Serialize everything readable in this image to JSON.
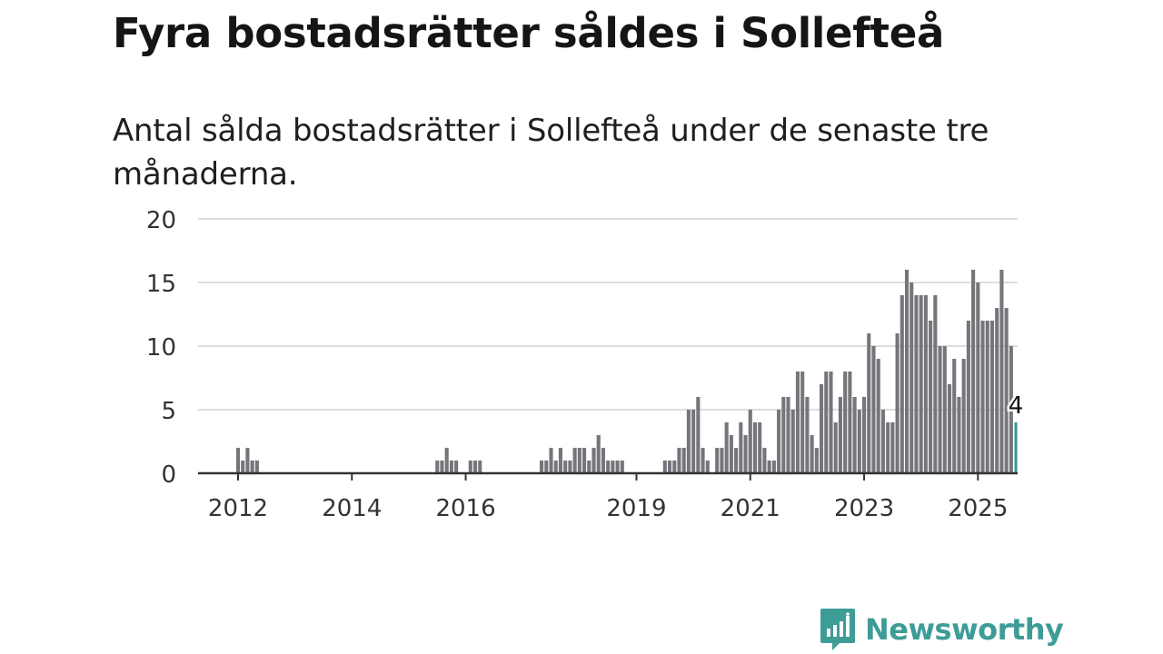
{
  "title": "Fyra bostadsrätter såldes i Sollefteå",
  "subtitle": "Antal sålda bostadsrätter i Sollefteå under de senaste tre månaderna.",
  "brand": {
    "name": "Newsworthy",
    "icon": "newsworthy-logo-icon",
    "color": "#3e9c96"
  },
  "colors": {
    "bars": "#75757b",
    "highlight": "#2a9d96",
    "grid": "#dddddd",
    "axis": "#333333"
  },
  "chart_data": {
    "type": "bar",
    "title": "Fyra bostadsrätter såldes i Sollefteå",
    "subtitle": "Antal sålda bostadsrätter i Sollefteå under de senaste tre månaderna.",
    "xlabel": "",
    "ylabel": "",
    "ylim": [
      0,
      20
    ],
    "yticks": [
      0,
      5,
      10,
      15,
      20
    ],
    "xticks": [
      "2012",
      "2014",
      "2016",
      "2019",
      "2021",
      "2023",
      "2025"
    ],
    "grid": true,
    "legend": "none",
    "start_month": "2012-01",
    "values": [
      2,
      1,
      2,
      1,
      1,
      0,
      0,
      0,
      0,
      0,
      0,
      0,
      0,
      0,
      0,
      0,
      0,
      0,
      0,
      0,
      0,
      0,
      0,
      0,
      0,
      0,
      0,
      0,
      0,
      0,
      0,
      0,
      0,
      0,
      0,
      0,
      0,
      0,
      0,
      0,
      0,
      0,
      1,
      1,
      2,
      1,
      1,
      0,
      0,
      1,
      1,
      1,
      0,
      0,
      0,
      0,
      0,
      0,
      0,
      0,
      0,
      0,
      0,
      0,
      1,
      1,
      2,
      1,
      2,
      1,
      1,
      2,
      2,
      2,
      1,
      2,
      3,
      2,
      1,
      1,
      1,
      1,
      0,
      0,
      0,
      0,
      0,
      0,
      0,
      0,
      1,
      1,
      1,
      2,
      2,
      5,
      5,
      6,
      2,
      1,
      0,
      2,
      2,
      4,
      3,
      2,
      4,
      3,
      5,
      4,
      4,
      2,
      1,
      1,
      5,
      6,
      6,
      5,
      8,
      8,
      6,
      3,
      2,
      7,
      8,
      8,
      4,
      6,
      8,
      8,
      6,
      5,
      6,
      11,
      10,
      9,
      5,
      4,
      4,
      11,
      14,
      16,
      15,
      14,
      14,
      14,
      12,
      14,
      10,
      10,
      7,
      9,
      6,
      9,
      12,
      16,
      15,
      12,
      12,
      12,
      13,
      16,
      13,
      10,
      4
    ],
    "highlight_last": true,
    "data_labels": [
      "4"
    ]
  }
}
